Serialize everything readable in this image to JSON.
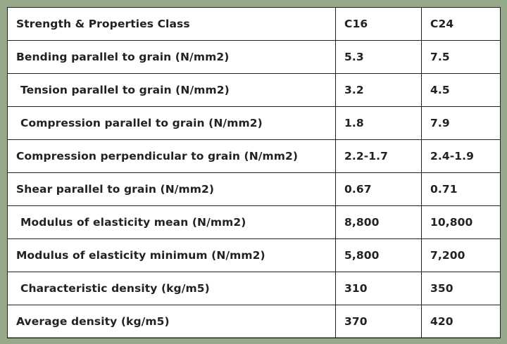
{
  "table": {
    "header": [
      "Strength & Properties Class",
      "C16",
      "C24"
    ],
    "rows": [
      {
        "property": "Bending parallel to grain (N/mm2)",
        "c16": "5.3",
        "c24": "7.5"
      },
      {
        "property": "Tension parallel to grain (N/mm2)",
        "c16": "3.2",
        "c24": "4.5"
      },
      {
        "property": "Compression parallel to grain (N/mm2)",
        "c16": "1.8",
        "c24": "7.9"
      },
      {
        "property": "Compression perpendicular to grain (N/mm2)",
        "c16": "2.2-1.7",
        "c24": "2.4-1.9"
      },
      {
        "property": "Shear parallel to grain (N/mm2)",
        "c16": "0.67",
        "c24": "0.71"
      },
      {
        "property": "Modulus of elasticity mean (N/mm2)",
        "c16": "8,800",
        "c24": "10,800"
      },
      {
        "property": "Modulus of elasticity minimum (N/mm2)",
        "c16": "5,800",
        "c24": "7,200"
      },
      {
        "property": "Characteristic density (kg/m5)",
        "c16": "310",
        "c24": "350"
      },
      {
        "property": "Average density (kg/m5)",
        "c16": "370",
        "c24": "420"
      }
    ]
  }
}
